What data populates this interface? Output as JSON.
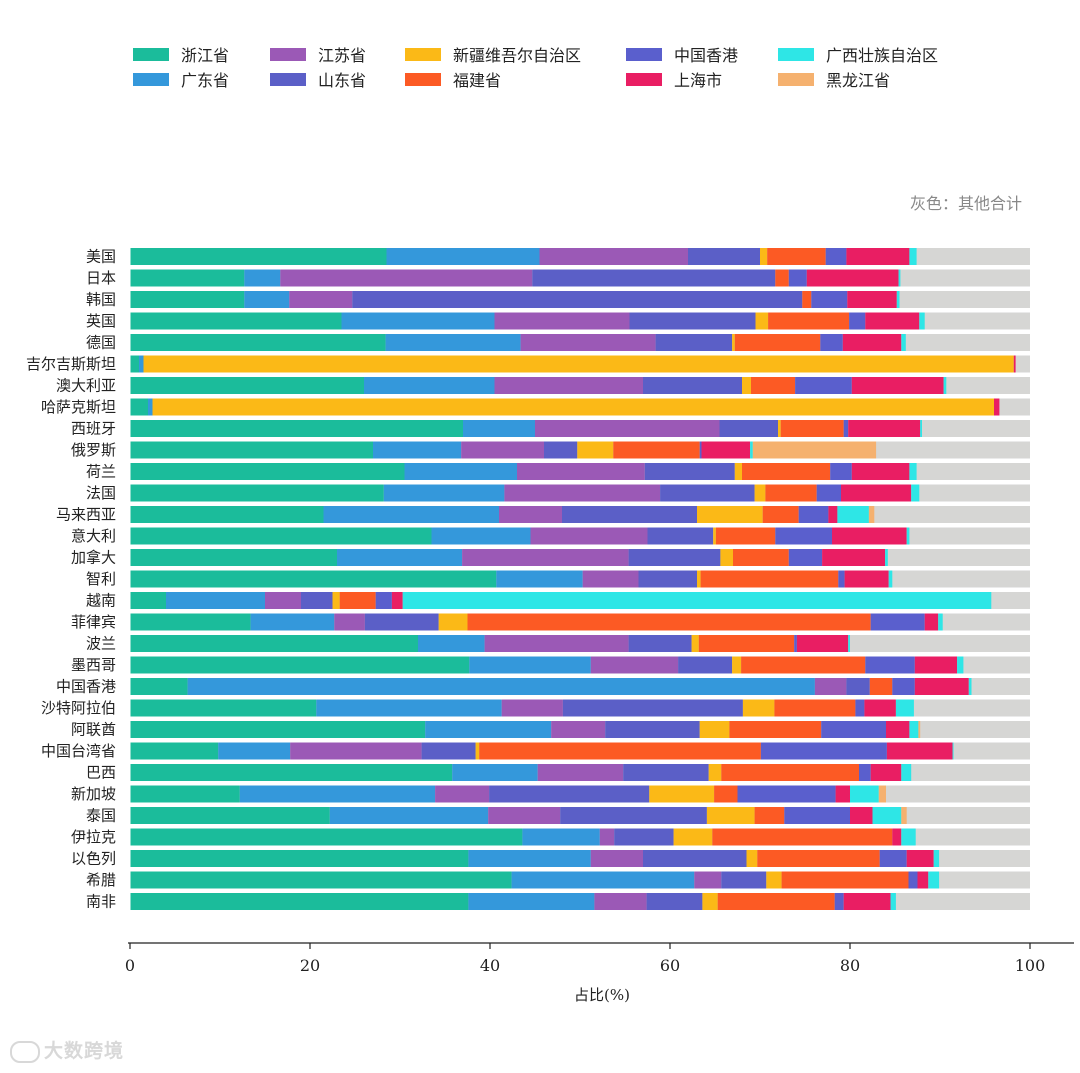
{
  "note": "灰色：其他合计",
  "watermark": "大数跨境",
  "chart_data": {
    "type": "bar",
    "orientation": "horizontal",
    "stacked": true,
    "xlabel": "占比(%)",
    "xlim": [
      0,
      100
    ],
    "xticks": [
      0,
      20,
      40,
      60,
      80,
      100
    ],
    "grid": false,
    "legend_position": "top",
    "categories": [
      "美国",
      "日本",
      "韩国",
      "英国",
      "德国",
      "吉尔吉斯斯坦",
      "澳大利亚",
      "哈萨克斯坦",
      "西班牙",
      "俄罗斯",
      "荷兰",
      "法国",
      "马来西亚",
      "意大利",
      "加拿大",
      "智利",
      "越南",
      "菲律宾",
      "波兰",
      "墨西哥",
      "中国香港",
      "沙特阿拉伯",
      "阿联酋",
      "中国台湾省",
      "巴西",
      "新加坡",
      "泰国",
      "伊拉克",
      "以色列",
      "希腊",
      "南非"
    ],
    "series": [
      {
        "name": "浙江省",
        "color": "#1bbc9b",
        "values": [
          28.5,
          12.7,
          12.7,
          23.5,
          28.4,
          1.0,
          26.0,
          2.0,
          37.0,
          27.0,
          30.5,
          28.2,
          21.5,
          33.5,
          23.0,
          40.7,
          4.0,
          13.4,
          32.0,
          37.7,
          6.4,
          20.7,
          32.8,
          9.8,
          35.8,
          12.2,
          22.2,
          43.6,
          37.6,
          42.4,
          37.6
        ]
      },
      {
        "name": "广东省",
        "color": "#3498db",
        "values": [
          17.0,
          4.0,
          5.0,
          17.0,
          15.0,
          0.5,
          14.5,
          0.5,
          8.0,
          9.8,
          12.5,
          13.4,
          19.5,
          11.0,
          13.9,
          9.6,
          11.0,
          9.3,
          7.4,
          13.5,
          69.7,
          20.6,
          14.0,
          8.0,
          9.5,
          21.7,
          17.6,
          8.6,
          13.6,
          20.3,
          14.0
        ]
      },
      {
        "name": "江苏省",
        "color": "#9b59b6",
        "values": [
          16.5,
          28.0,
          7.0,
          15.0,
          15.0,
          0.0,
          16.5,
          0.0,
          20.5,
          9.2,
          14.2,
          17.3,
          7.0,
          13.0,
          18.5,
          6.2,
          4.0,
          3.4,
          16.0,
          9.7,
          3.5,
          6.8,
          6.0,
          14.6,
          9.5,
          6.0,
          8.0,
          1.6,
          5.8,
          3.0,
          5.8
        ]
      },
      {
        "name": "山东省",
        "color": "#5b5fc7",
        "values": [
          8.0,
          27.0,
          50.0,
          14.0,
          8.5,
          0.0,
          11.0,
          0.0,
          6.5,
          3.7,
          10.0,
          10.5,
          15.0,
          7.3,
          10.2,
          6.5,
          3.5,
          8.2,
          7.0,
          6.0,
          2.6,
          20.0,
          10.5,
          6.0,
          9.5,
          17.8,
          16.3,
          6.6,
          11.5,
          5.0,
          6.2
        ]
      },
      {
        "name": "新疆维吾尔自治区",
        "color": "#fbb917",
        "values": [
          0.8,
          0.0,
          0.0,
          1.4,
          0.3,
          96.7,
          1.0,
          93.5,
          0.3,
          4.0,
          0.8,
          1.2,
          7.3,
          0.3,
          1.4,
          0.4,
          0.8,
          3.2,
          0.8,
          1.0,
          0.0,
          3.5,
          3.3,
          0.4,
          1.4,
          7.2,
          5.3,
          4.3,
          1.2,
          1.7,
          1.7
        ]
      },
      {
        "name": "福建省",
        "color": "#fc5a24",
        "values": [
          6.5,
          1.5,
          1.0,
          9.0,
          9.5,
          0.0,
          4.9,
          0.0,
          7.0,
          9.6,
          9.8,
          5.7,
          4.0,
          6.6,
          6.2,
          15.3,
          4.0,
          44.8,
          10.6,
          13.8,
          2.5,
          9.0,
          10.2,
          31.3,
          15.3,
          2.6,
          3.3,
          20.0,
          13.6,
          14.1,
          13.0
        ]
      },
      {
        "name": "中国香港",
        "color": "#5a5fcd",
        "values": [
          2.3,
          2.0,
          4.0,
          1.8,
          2.5,
          0.0,
          6.3,
          0.0,
          0.5,
          0.2,
          2.4,
          2.7,
          3.3,
          6.3,
          3.7,
          0.7,
          1.8,
          6.0,
          0.3,
          5.5,
          2.5,
          1.0,
          7.2,
          14.0,
          1.3,
          10.9,
          7.3,
          0.0,
          3.0,
          1.0,
          1.0
        ]
      },
      {
        "name": "上海市",
        "color": "#e91e63",
        "values": [
          7.0,
          10.2,
          5.5,
          6.0,
          6.5,
          0.2,
          10.2,
          0.6,
          8.0,
          5.4,
          6.4,
          7.8,
          1.0,
          8.3,
          7.0,
          4.9,
          1.2,
          1.5,
          5.7,
          4.7,
          6.0,
          3.5,
          2.6,
          7.3,
          3.4,
          1.6,
          2.5,
          1.0,
          3.0,
          1.2,
          5.2
        ]
      },
      {
        "name": "广西壮族自治区",
        "color": "#2ee6e6",
        "values": [
          0.8,
          0.2,
          0.3,
          0.6,
          0.5,
          0.0,
          0.3,
          0.0,
          0.2,
          0.3,
          0.8,
          0.9,
          3.5,
          0.3,
          0.3,
          0.4,
          65.4,
          0.5,
          0.2,
          0.7,
          0.3,
          2.0,
          1.0,
          0.1,
          1.1,
          3.2,
          3.2,
          1.6,
          0.6,
          1.2,
          0.6
        ]
      },
      {
        "name": "黑龙江省",
        "color": "#f5b16f",
        "values": [
          0.0,
          0.0,
          0.0,
          0.0,
          0.0,
          0.0,
          0.0,
          0.0,
          0.0,
          13.7,
          0.0,
          0.0,
          0.6,
          0.0,
          0.0,
          0.0,
          0.0,
          0.0,
          0.0,
          0.0,
          0.0,
          0.0,
          0.2,
          0.0,
          0.0,
          0.8,
          0.6,
          0.0,
          0.0,
          0.0,
          0.0
        ]
      }
    ],
    "other_color": "#d6d6d4"
  }
}
